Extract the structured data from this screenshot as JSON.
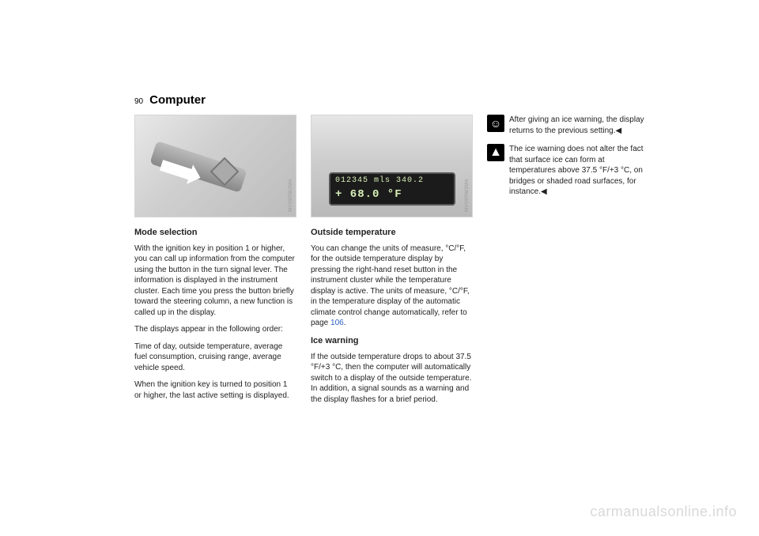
{
  "page": {
    "number": "90",
    "title": "Computer"
  },
  "col1": {
    "figcode": "MV09RM2MA",
    "h_mode": "Mode selection",
    "p1": "With the ignition key in position 1 or higher, you can call up information from the computer using the button in the turn signal lever. The information is displayed in the instrument cluster. Each time you press the button briefly toward the steering column, a new function is called up in the display.",
    "p2": "The displays appear in the following order:",
    "p3": "Time of day, outside temperature, average fuel consumption, cruising range, average vehicle speed.",
    "p4": "When the ignition key is turned to position 1 or higher, the last active setting is displayed."
  },
  "col2": {
    "figcode": "MV09RM3MA",
    "dash_line1": "012345  mls  340.2",
    "dash_line2": "+  68.0  °F",
    "h_out": "Outside temperature",
    "p1a": "You can change the units of measure, °C/°F, for the outside temperature display by pressing the right-hand reset button in the instrument cluster while the temperature display is active. The units of measure, °C/°F, in the temperature display of the automatic climate control change automatically, refer to page ",
    "p1_link": "106",
    "p1b": ".",
    "h_ice": "Ice warning",
    "p2": "If the outside temperature drops to about 37.5 °F/+3 °C, then the computer will automatically switch to a display of the outside temperature. In addition, a signal sounds as a warning and the display flashes for a brief period."
  },
  "col3": {
    "note1": "After giving an ice warning, the display returns to the previous setting.",
    "note2": "The ice warning does not alter the fact that surface ice can form at temperatures above 37.5 °F/+3 °C, on bridges or shaded road surfaces, for instance."
  },
  "watermark": "carmanualsonline.info"
}
